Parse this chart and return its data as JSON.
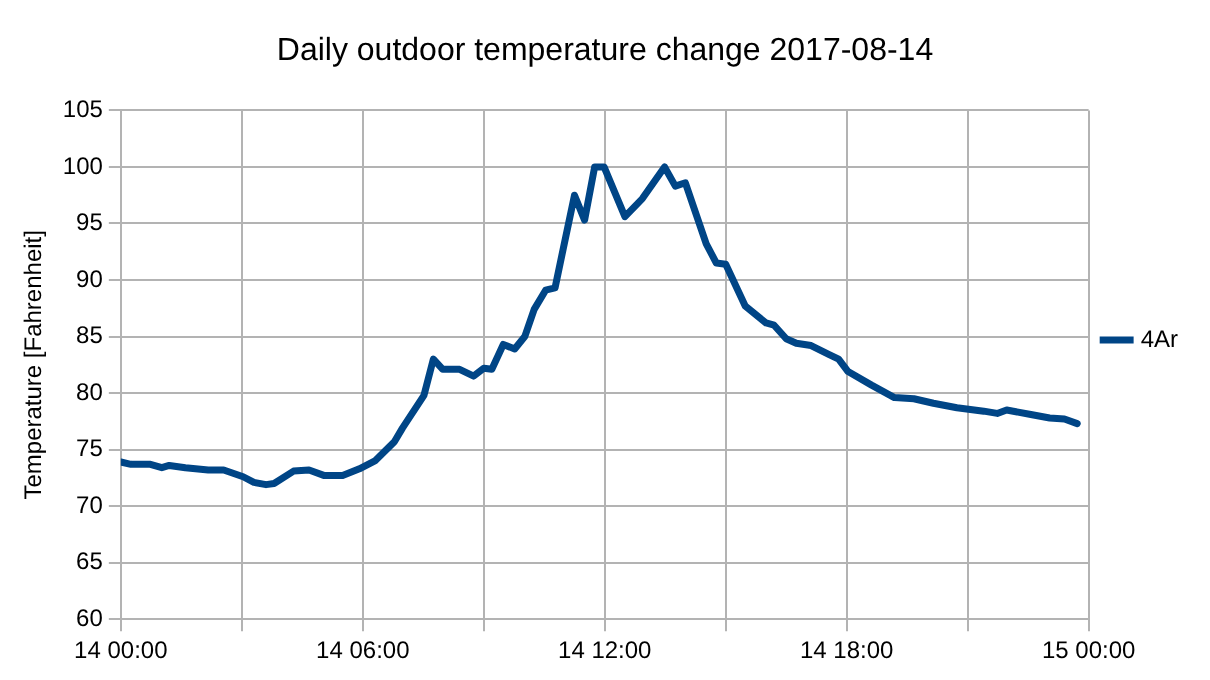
{
  "chart_data": {
    "type": "line",
    "title": "Daily outdoor temperature change 2017-08-14",
    "ylabel": "Temperature [Fahrenheit]",
    "x": [
      "2017-08-14T00:00",
      "2017-08-14T00:15",
      "2017-08-14T00:44",
      "2017-08-14T01:01",
      "2017-08-14T01:12",
      "2017-08-14T01:36",
      "2017-08-14T02:10",
      "2017-08-14T02:33",
      "2017-08-14T03:02",
      "2017-08-14T03:18",
      "2017-08-14T03:36",
      "2017-08-14T03:48",
      "2017-08-14T04:17",
      "2017-08-14T04:40",
      "2017-08-14T05:03",
      "2017-08-14T05:30",
      "2017-08-14T05:55",
      "2017-08-14T06:18",
      "2017-08-14T06:47",
      "2017-08-14T06:59",
      "2017-08-14T07:31",
      "2017-08-14T07:45",
      "2017-08-14T07:59",
      "2017-08-14T08:24",
      "2017-08-14T08:45",
      "2017-08-14T09:00",
      "2017-08-14T09:12",
      "2017-08-14T09:29",
      "2017-08-14T09:46",
      "2017-08-14T10:01",
      "2017-08-14T10:15",
      "2017-08-14T10:32",
      "2017-08-14T10:46",
      "2017-08-14T10:58",
      "2017-08-14T11:15",
      "2017-08-14T11:30",
      "2017-08-14T11:45",
      "2017-08-14T11:59",
      "2017-08-14T12:30",
      "2017-08-14T12:56",
      "2017-08-14T13:29",
      "2017-08-14T13:45",
      "2017-08-14T14:00",
      "2017-08-14T14:31",
      "2017-08-14T14:46",
      "2017-08-14T15:00",
      "2017-08-14T15:29",
      "2017-08-14T16:00",
      "2017-08-14T16:12",
      "2017-08-14T16:30",
      "2017-08-14T16:45",
      "2017-08-14T17:07",
      "2017-08-14T17:34",
      "2017-08-14T17:48",
      "2017-08-14T18:02",
      "2017-08-14T18:37",
      "2017-08-14T19:11",
      "2017-08-14T19:40",
      "2017-08-14T20:09",
      "2017-08-14T20:44",
      "2017-08-14T21:24",
      "2017-08-14T21:44",
      "2017-08-14T21:58",
      "2017-08-14T22:34",
      "2017-08-14T23:02",
      "2017-08-14T23:24",
      "2017-08-14T23:43"
    ],
    "series": [
      {
        "name": "4Ar",
        "color": "#004586",
        "values": [
          73.9,
          73.7,
          73.7,
          73.4,
          73.6,
          73.4,
          73.2,
          73.2,
          72.6,
          72.1,
          71.9,
          72.0,
          73.1,
          73.2,
          72.7,
          72.7,
          73.3,
          74.0,
          75.7,
          76.9,
          79.8,
          83.0,
          82.1,
          82.1,
          81.5,
          82.2,
          82.1,
          84.3,
          83.9,
          85.0,
          87.4,
          89.1,
          89.3,
          92.7,
          97.5,
          95.3,
          100.0,
          100.0,
          95.6,
          97.2,
          100.0,
          98.3,
          98.6,
          93.2,
          91.5,
          91.4,
          87.7,
          86.2,
          86.0,
          84.8,
          84.4,
          84.2,
          83.4,
          83.0,
          81.9,
          80.7,
          79.6,
          79.5,
          79.1,
          78.7,
          78.4,
          78.2,
          78.5,
          78.1,
          77.8,
          77.7,
          77.3
        ]
      }
    ],
    "xlim": [
      "2017-08-14T00:00",
      "2017-08-15T00:00"
    ],
    "xticks": [
      {
        "value": "2017-08-14T00:00",
        "label": "14 00:00"
      },
      {
        "value": "2017-08-14T03:00",
        "label": null
      },
      {
        "value": "2017-08-14T06:00",
        "label": "14 06:00"
      },
      {
        "value": "2017-08-14T09:00",
        "label": null
      },
      {
        "value": "2017-08-14T12:00",
        "label": "14 12:00"
      },
      {
        "value": "2017-08-14T15:00",
        "label": null
      },
      {
        "value": "2017-08-14T18:00",
        "label": "14 18:00"
      },
      {
        "value": "2017-08-14T21:00",
        "label": null
      },
      {
        "value": "2017-08-15T00:00",
        "label": "15 00:00"
      }
    ],
    "ylim": [
      60,
      105
    ],
    "yticks": [
      60,
      65,
      70,
      75,
      80,
      85,
      90,
      95,
      100,
      105
    ],
    "grid": true,
    "legend": "right",
    "marker": "none",
    "line_style": "solid"
  }
}
